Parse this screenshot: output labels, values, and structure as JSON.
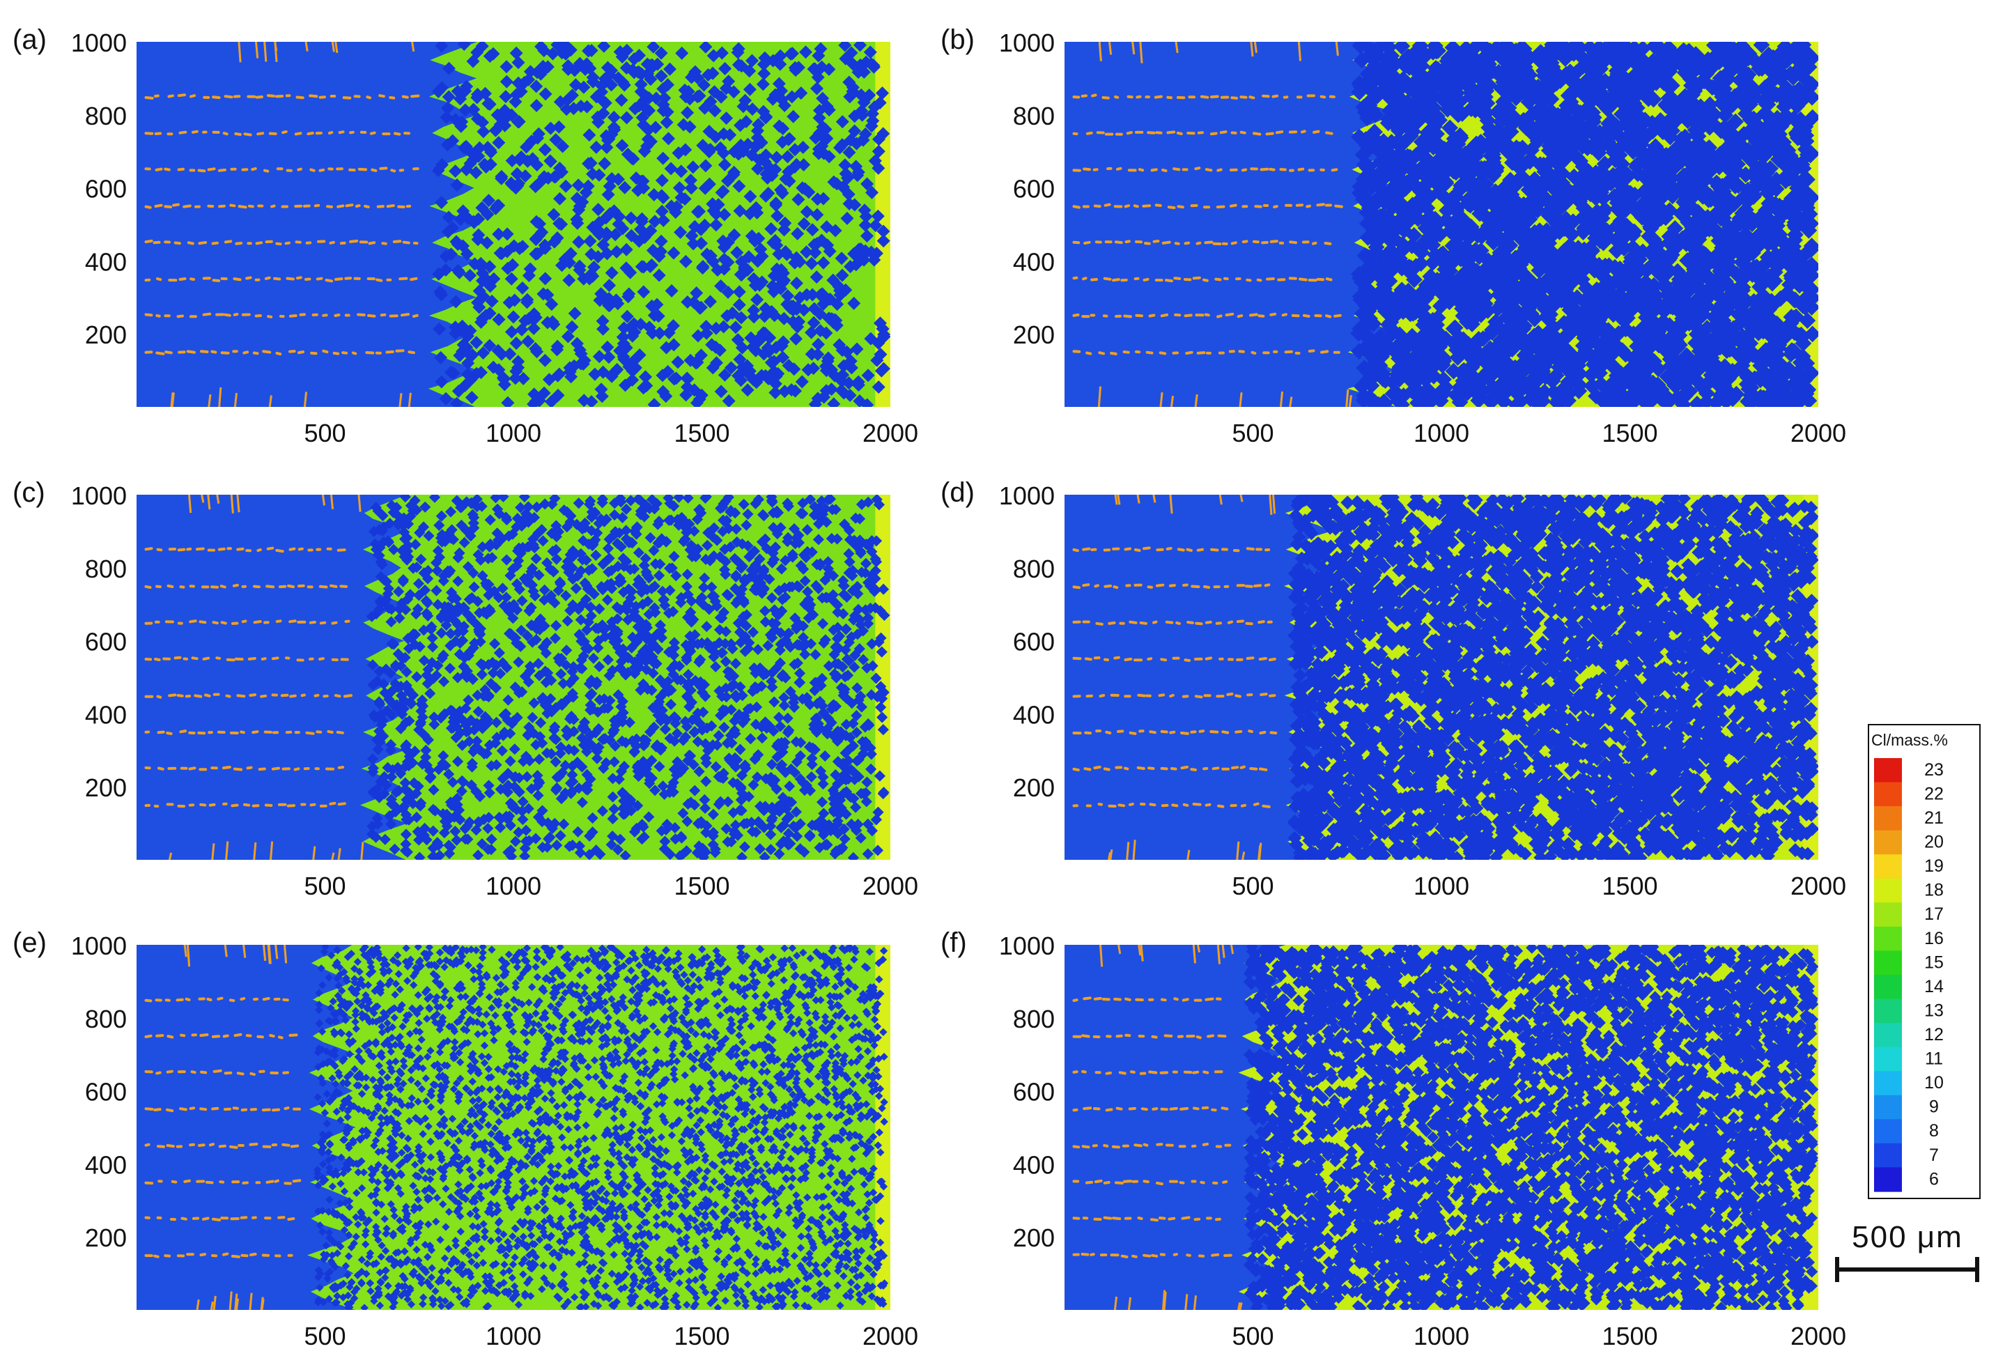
{
  "figure": {
    "panels": [
      {
        "label": "(a)",
        "front": 900,
        "front_min": 780,
        "matrix_color": "#7ddf19",
        "point_count": 1100,
        "point_size": 1.0
      },
      {
        "label": "(b)",
        "front": 880,
        "front_min": 760,
        "matrix_color": "#c6ee12",
        "point_count": 3200,
        "point_size": 1.25
      },
      {
        "label": "(c)",
        "front": 710,
        "front_min": 600,
        "matrix_color": "#7ddf19",
        "point_count": 2100,
        "point_size": 0.85
      },
      {
        "label": "(d)",
        "front": 700,
        "front_min": 590,
        "matrix_color": "#c6ee12",
        "point_count": 4200,
        "point_size": 1.05
      },
      {
        "label": "(e)",
        "front": 580,
        "front_min": 460,
        "matrix_color": "#86e21a",
        "point_count": 3600,
        "point_size": 0.6
      },
      {
        "label": "(f)",
        "front": 580,
        "front_min": 470,
        "matrix_color": "#c6ee12",
        "point_count": 5200,
        "point_size": 0.9
      }
    ],
    "colors": {
      "dendrite": "#1f4fe0",
      "particle": "#1638d8",
      "segregation": "#f0a020",
      "edge_glow": "#d8ef1a"
    }
  },
  "chart_data": [
    {
      "type": "heatmap",
      "title": "(a)",
      "xlabel": "",
      "ylabel": "",
      "xlim": [
        0,
        2000
      ],
      "ylim": [
        0,
        1000
      ],
      "xticks": [
        "500",
        "1000",
        "1500",
        "2000"
      ],
      "yticks": [
        "200",
        "400",
        "600",
        "800",
        "1000"
      ]
    },
    {
      "type": "heatmap",
      "title": "(b)",
      "xlabel": "",
      "ylabel": "",
      "xlim": [
        0,
        2000
      ],
      "ylim": [
        0,
        1000
      ],
      "xticks": [
        "500",
        "1000",
        "1500",
        "2000"
      ],
      "yticks": [
        "200",
        "400",
        "600",
        "800",
        "1000"
      ]
    },
    {
      "type": "heatmap",
      "title": "(c)",
      "xlabel": "",
      "ylabel": "",
      "xlim": [
        0,
        2000
      ],
      "ylim": [
        0,
        1000
      ],
      "xticks": [
        "500",
        "1000",
        "1500",
        "2000"
      ],
      "yticks": [
        "200",
        "400",
        "600",
        "800",
        "1000"
      ]
    },
    {
      "type": "heatmap",
      "title": "(d)",
      "xlabel": "",
      "ylabel": "",
      "xlim": [
        0,
        2000
      ],
      "ylim": [
        0,
        1000
      ],
      "xticks": [
        "500",
        "1000",
        "1500",
        "2000"
      ],
      "yticks": [
        "200",
        "400",
        "600",
        "800",
        "1000"
      ]
    },
    {
      "type": "heatmap",
      "title": "(e)",
      "xlabel": "",
      "ylabel": "",
      "xlim": [
        0,
        2000
      ],
      "ylim": [
        0,
        1000
      ],
      "xticks": [
        "500",
        "1000",
        "1500",
        "2000"
      ],
      "yticks": [
        "200",
        "400",
        "600",
        "800",
        "1000"
      ]
    },
    {
      "type": "heatmap",
      "title": "(f)",
      "xlabel": "",
      "ylabel": "",
      "xlim": [
        0,
        2000
      ],
      "ylim": [
        0,
        1000
      ],
      "xticks": [
        "500",
        "1000",
        "1500",
        "2000"
      ],
      "yticks": [
        "200",
        "400",
        "600",
        "800",
        "1000"
      ]
    }
  ],
  "colorbar": {
    "title": "Cl/mass.%",
    "levels": [
      {
        "value": "23",
        "color": "#e01a10"
      },
      {
        "value": "22",
        "color": "#ee4a10"
      },
      {
        "value": "21",
        "color": "#f07a12"
      },
      {
        "value": "20",
        "color": "#f0a016"
      },
      {
        "value": "19",
        "color": "#f7d61c"
      },
      {
        "value": "18",
        "color": "#d3ee12"
      },
      {
        "value": "17",
        "color": "#9ee616"
      },
      {
        "value": "16",
        "color": "#5fe018"
      },
      {
        "value": "15",
        "color": "#2bd71c"
      },
      {
        "value": "14",
        "color": "#16cf3e"
      },
      {
        "value": "13",
        "color": "#16d07a"
      },
      {
        "value": "12",
        "color": "#19d2b0"
      },
      {
        "value": "11",
        "color": "#1ad4d8"
      },
      {
        "value": "10",
        "color": "#1ab8f0"
      },
      {
        "value": "9",
        "color": "#1a8ef0"
      },
      {
        "value": "8",
        "color": "#1a6cf0"
      },
      {
        "value": "7",
        "color": "#1a44e6"
      },
      {
        "value": "6",
        "color": "#1a1ad8"
      }
    ]
  },
  "scale_bar": {
    "label": "500 μm"
  }
}
